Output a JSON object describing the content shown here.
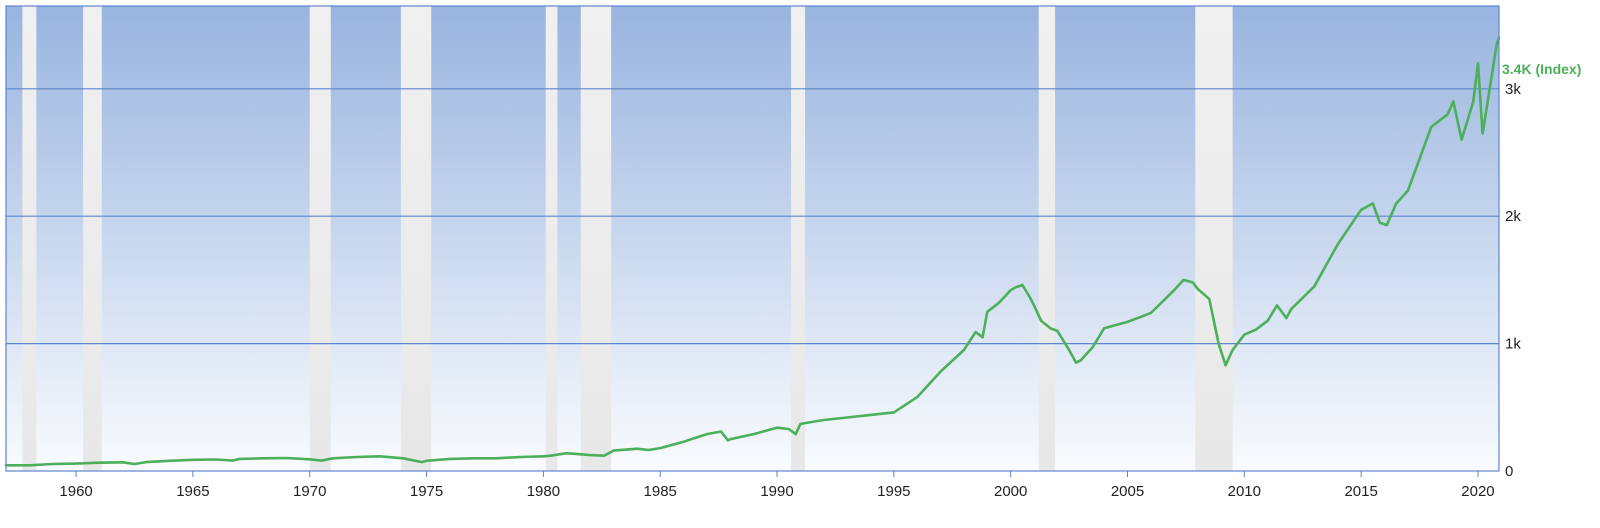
{
  "chart_data": {
    "type": "line",
    "title": "",
    "xlabel": "",
    "ylabel": "",
    "xlim": [
      1957.0,
      2020.9
    ],
    "ylim": [
      0,
      3650
    ],
    "x_ticks": [
      1960,
      1965,
      1970,
      1975,
      1980,
      1985,
      1990,
      1995,
      2000,
      2005,
      2010,
      2015,
      2020
    ],
    "y_ticks": [
      {
        "value": 0,
        "label": "0"
      },
      {
        "value": 1000,
        "label": "1k"
      },
      {
        "value": 2000,
        "label": "2k"
      },
      {
        "value": 3000,
        "label": "3k"
      }
    ],
    "grid": "horizontal",
    "last_value_label": "3.4K (Index)",
    "recessions": [
      [
        1957.7,
        1958.3
      ],
      [
        1960.3,
        1961.1
      ],
      [
        1970.0,
        1970.9
      ],
      [
        1973.9,
        1975.2
      ],
      [
        1980.1,
        1980.6
      ],
      [
        1981.6,
        1982.9
      ],
      [
        1990.6,
        1991.2
      ],
      [
        2001.2,
        2001.9
      ],
      [
        2007.9,
        2009.5
      ]
    ],
    "series": [
      {
        "x": [
          1957.0,
          1958.0,
          1959.0,
          1960.0,
          1961.0,
          1962.0,
          1962.5,
          1963.0,
          1964.0,
          1965.0,
          1966.0,
          1966.7,
          1967.0,
          1968.0,
          1969.0,
          1970.0,
          1970.5,
          1971.0,
          1972.0,
          1973.0,
          1974.0,
          1974.8,
          1975.0,
          1976.0,
          1977.0,
          1978.0,
          1979.0,
          1980.0,
          1980.3,
          1981.0,
          1982.0,
          1982.6,
          1983.0,
          1984.0,
          1984.5,
          1985.0,
          1986.0,
          1987.0,
          1987.6,
          1987.9,
          1988.0,
          1989.0,
          1990.0,
          1990.5,
          1990.8,
          1991.0,
          1992.0,
          1993.0,
          1994.0,
          1994.5,
          1995.0,
          1996.0,
          1997.0,
          1998.0,
          1998.5,
          1998.8,
          1999.0,
          1999.5,
          2000.0,
          2000.2,
          2000.5,
          2000.8,
          2001.0,
          2001.3,
          2001.7,
          2002.0,
          2002.5,
          2002.8,
          2003.0,
          2003.5,
          2004.0,
          2005.0,
          2006.0,
          2007.0,
          2007.4,
          2007.8,
          2008.0,
          2008.5,
          2008.9,
          2009.2,
          2009.5,
          2010.0,
          2010.5,
          2011.0,
          2011.4,
          2011.8,
          2012.0,
          2013.0,
          2014.0,
          2015.0,
          2015.5,
          2015.8,
          2016.1,
          2016.5,
          2017.0,
          2018.0,
          2018.7,
          2018.95,
          2019.3,
          2019.8,
          2020.0,
          2020.2,
          2020.5,
          2020.8,
          2020.9
        ],
        "values": [
          45,
          45,
          55,
          58,
          65,
          68,
          55,
          70,
          80,
          88,
          90,
          82,
          95,
          100,
          102,
          92,
          82,
          100,
          110,
          115,
          100,
          70,
          80,
          95,
          100,
          100,
          110,
          115,
          120,
          140,
          125,
          120,
          160,
          175,
          165,
          180,
          230,
          290,
          310,
          240,
          250,
          290,
          340,
          330,
          290,
          370,
          400,
          420,
          440,
          450,
          460,
          580,
          780,
          950,
          1090,
          1050,
          1250,
          1320,
          1420,
          1440,
          1460,
          1370,
          1300,
          1180,
          1120,
          1100,
          950,
          850,
          870,
          970,
          1120,
          1170,
          1240,
          1420,
          1500,
          1480,
          1430,
          1350,
          1000,
          830,
          950,
          1070,
          1110,
          1180,
          1300,
          1200,
          1270,
          1450,
          1780,
          2050,
          2100,
          1950,
          1930,
          2100,
          2200,
          2700,
          2800,
          2900,
          2600,
          2900,
          3200,
          2650,
          3000,
          3350,
          3400
        ]
      }
    ]
  },
  "colors": {
    "series_line": "#4caf5a",
    "recession_band": "#ececec",
    "bg_top": "#98b4df",
    "bg_bottom": "#f9fbfe",
    "grid": "#5d86cf",
    "border": "#5d86cf",
    "last_label": "#4caf5a"
  }
}
